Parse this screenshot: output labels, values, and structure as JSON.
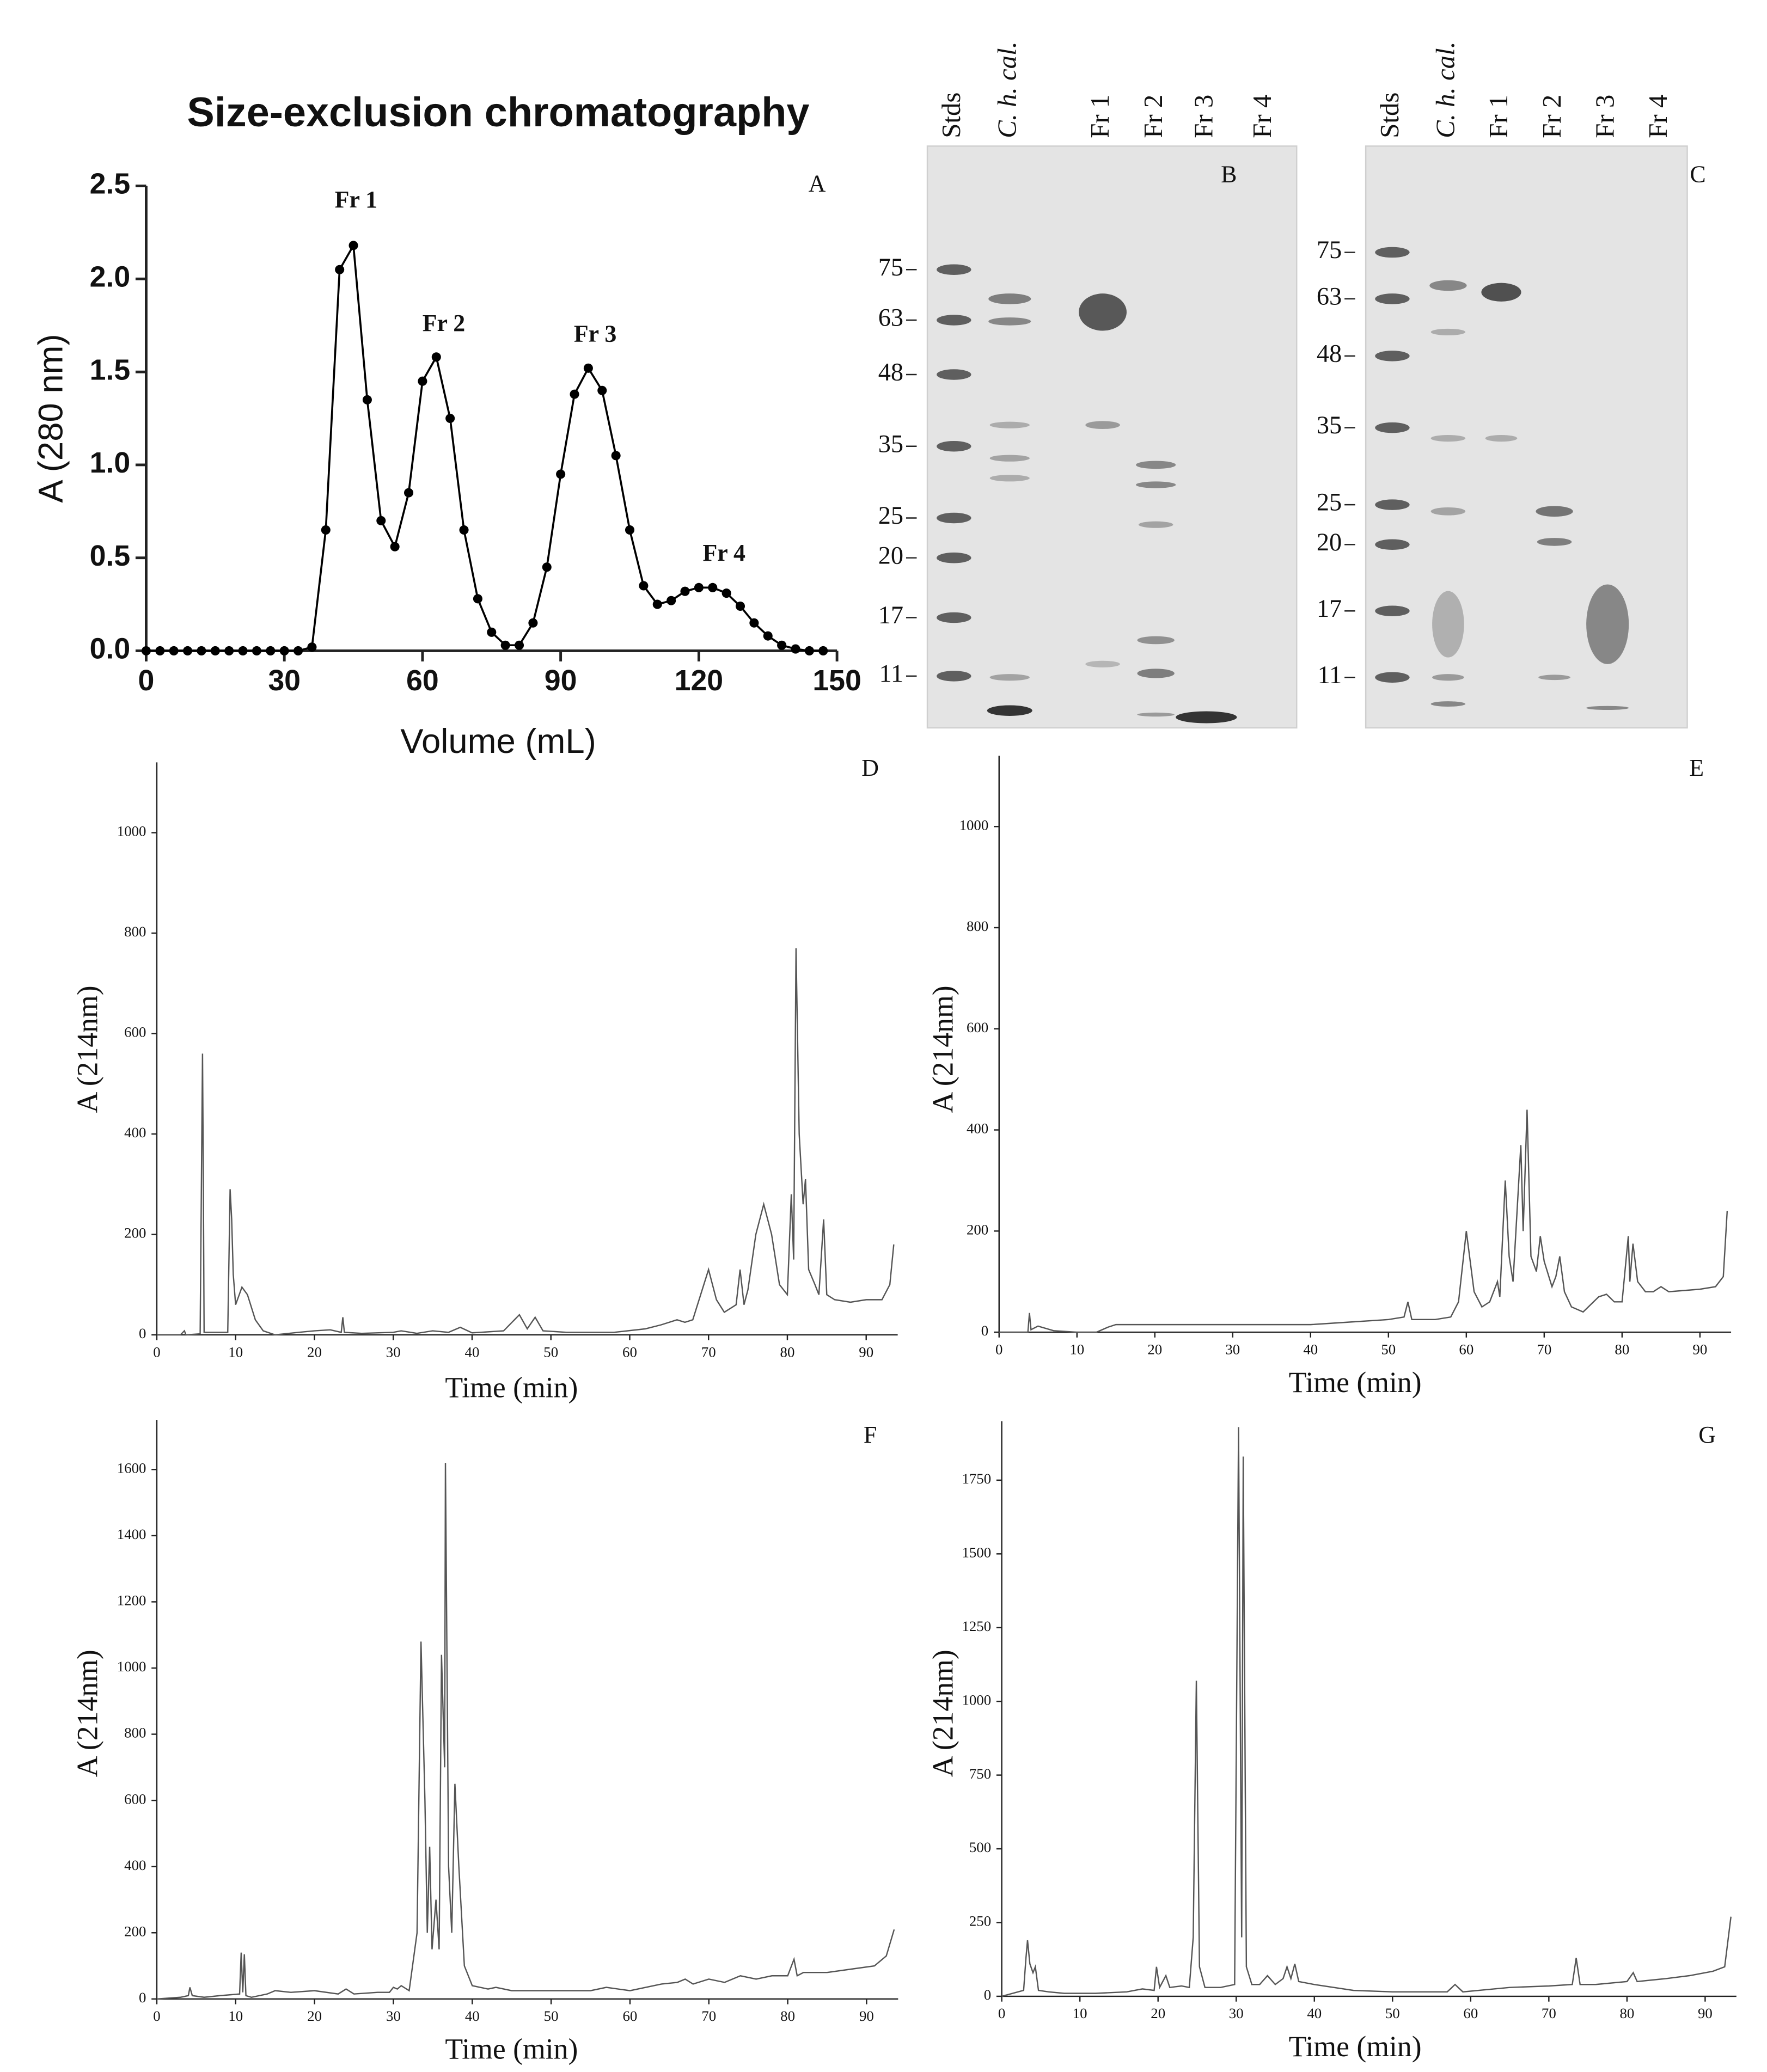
{
  "chart_data": [
    {
      "type": "line",
      "panel": "A",
      "title": "Size-exclusion chromatography",
      "xlabel": "Volume (mL)",
      "ylabel": "A (280 nm)",
      "annotations": [
        "Fr 1",
        "Fr 2",
        "Fr 3",
        "Fr 4"
      ],
      "markers": true,
      "color": "#000000",
      "x": [
        0,
        3,
        6,
        9,
        12,
        15,
        18,
        21,
        24,
        27,
        30,
        33,
        36,
        39,
        42,
        45,
        48,
        51,
        54,
        57,
        60,
        63,
        66,
        69,
        72,
        75,
        78,
        81,
        84,
        87,
        90,
        93,
        96,
        99,
        102,
        105,
        108,
        111,
        114,
        117,
        120,
        123,
        126,
        129,
        132,
        135,
        138,
        141,
        144,
        147
      ],
      "values": [
        0,
        0,
        0,
        0,
        0,
        0,
        0,
        0,
        0,
        0,
        0,
        0,
        0.02,
        0.65,
        2.05,
        2.18,
        1.35,
        0.7,
        0.56,
        0.85,
        1.45,
        1.58,
        1.25,
        0.65,
        0.28,
        0.1,
        0.03,
        0.03,
        0.15,
        0.45,
        0.95,
        1.38,
        1.52,
        1.4,
        1.05,
        0.65,
        0.35,
        0.25,
        0.27,
        0.32,
        0.34,
        0.34,
        0.31,
        0.24,
        0.15,
        0.08,
        0.03,
        0.01,
        0,
        0
      ],
      "xlim": [
        0,
        150
      ],
      "ylim": [
        0,
        2.5
      ],
      "xticks": [
        0,
        30,
        60,
        90,
        120,
        150
      ],
      "yticks": [
        {
          "value": 0,
          "label": "0.0"
        },
        0.5,
        {
          "value": 1,
          "label": "1.0"
        },
        1.5,
        {
          "value": 2,
          "label": "2.0"
        },
        2.5
      ]
    },
    {
      "type": "line",
      "panel": "D",
      "xlabel": "Time (min)",
      "ylabel": "A (214nm)",
      "color": "#555555",
      "x": [
        0,
        3,
        3.5,
        3.7,
        5.5,
        5.8,
        5.9,
        6,
        9,
        9.3,
        9.5,
        9.7,
        10,
        10.8,
        11.5,
        12.5,
        13.5,
        15,
        18,
        20,
        22,
        23.4,
        23.6,
        23.8,
        26,
        30,
        31,
        33,
        35,
        37,
        38.5,
        40,
        44,
        46,
        47,
        48,
        49,
        52,
        58,
        62,
        64,
        66,
        67,
        68,
        69,
        70,
        71,
        72,
        73.5,
        74,
        74.5,
        75,
        76,
        77,
        78,
        79,
        80,
        80.5,
        80.8,
        81.1,
        81.5,
        82,
        82.3,
        82.7,
        83.5,
        84,
        84.6,
        85,
        86,
        88,
        90,
        92,
        93,
        93.5
      ],
      "values": [
        0,
        0,
        8,
        0,
        2,
        560,
        320,
        5,
        5,
        290,
        230,
        120,
        60,
        95,
        80,
        30,
        8,
        0,
        5,
        8,
        10,
        5,
        35,
        5,
        3,
        5,
        8,
        3,
        8,
        5,
        15,
        4,
        8,
        40,
        12,
        35,
        8,
        5,
        5,
        12,
        20,
        30,
        25,
        30,
        80,
        130,
        70,
        45,
        60,
        130,
        60,
        90,
        200,
        260,
        200,
        100,
        80,
        280,
        150,
        770,
        400,
        260,
        310,
        130,
        100,
        80,
        230,
        80,
        70,
        65,
        70,
        70,
        100,
        180
      ],
      "xlim": [
        0,
        94
      ],
      "ylim": [
        0,
        1140
      ],
      "xticks": [
        0,
        10,
        20,
        30,
        40,
        50,
        60,
        70,
        80,
        90
      ],
      "yticks": [
        0,
        200,
        400,
        600,
        800,
        1000
      ]
    },
    {
      "type": "line",
      "panel": "E",
      "xlabel": "Time (min)",
      "ylabel": "A (214nm)",
      "color": "#555555",
      "x": [
        0,
        3,
        3.7,
        3.9,
        4.1,
        5,
        7,
        10,
        12.5,
        14,
        15,
        20,
        30,
        40,
        45,
        50,
        52,
        52.5,
        53,
        56,
        58,
        59,
        60,
        61,
        62,
        63,
        64,
        64.3,
        65,
        65.5,
        66,
        67,
        67.3,
        67.8,
        68.3,
        69,
        69.5,
        70,
        71,
        71.5,
        72,
        72.6,
        73.5,
        75,
        76,
        77,
        78,
        79,
        80,
        80.8,
        81,
        81.4,
        82,
        83,
        84,
        85,
        86,
        90,
        92,
        93,
        93.5
      ],
      "values": [
        0,
        0,
        0,
        38,
        5,
        12,
        3,
        0,
        0,
        10,
        15,
        15,
        15,
        15,
        20,
        25,
        30,
        60,
        25,
        25,
        30,
        60,
        200,
        80,
        50,
        60,
        100,
        70,
        300,
        150,
        100,
        370,
        200,
        440,
        150,
        120,
        190,
        140,
        90,
        110,
        150,
        80,
        50,
        40,
        55,
        70,
        75,
        60,
        60,
        190,
        100,
        175,
        100,
        80,
        80,
        90,
        80,
        85,
        90,
        110,
        240
      ],
      "xlim": [
        0,
        94
      ],
      "ylim": [
        0,
        1140
      ],
      "xticks": [
        0,
        10,
        20,
        30,
        40,
        50,
        60,
        70,
        80,
        90
      ],
      "yticks": [
        0,
        200,
        400,
        600,
        800,
        1000
      ]
    },
    {
      "type": "line",
      "panel": "F",
      "xlabel": "Time (min)",
      "ylabel": "A (214nm)",
      "color": "#555555",
      "x": [
        0,
        3,
        4,
        4.2,
        4.5,
        6,
        8,
        10.5,
        10.7,
        10.9,
        11.1,
        11.3,
        12,
        14,
        15,
        17,
        20,
        23,
        24,
        25,
        28,
        29.5,
        30,
        30.5,
        31,
        32,
        33,
        33.5,
        34,
        34.3,
        34.6,
        34.9,
        35.4,
        35.8,
        36.1,
        36.5,
        36.6,
        37,
        37.4,
        37.8,
        38.3,
        39,
        40,
        42,
        43,
        45,
        50,
        55,
        57,
        60,
        64,
        66,
        67,
        68,
        70,
        72,
        74,
        76,
        78,
        80,
        80.8,
        81.2,
        82,
        85,
        88,
        91,
        92.5,
        93.5
      ],
      "values": [
        0,
        5,
        10,
        35,
        10,
        5,
        10,
        15,
        140,
        20,
        135,
        10,
        5,
        15,
        25,
        20,
        25,
        15,
        30,
        15,
        20,
        20,
        35,
        30,
        40,
        25,
        200,
        1080,
        600,
        200,
        460,
        150,
        300,
        150,
        1040,
        700,
        1620,
        400,
        200,
        650,
        400,
        100,
        40,
        30,
        35,
        25,
        25,
        25,
        35,
        25,
        45,
        50,
        60,
        45,
        60,
        50,
        70,
        60,
        70,
        70,
        120,
        70,
        80,
        80,
        90,
        100,
        130,
        210
      ],
      "xlim": [
        0,
        94
      ],
      "ylim": [
        0,
        1750
      ],
      "xticks": [
        0,
        10,
        20,
        30,
        40,
        50,
        60,
        70,
        80,
        90
      ],
      "yticks": [
        0,
        200,
        400,
        600,
        800,
        1000,
        1200,
        1400,
        1600
      ]
    },
    {
      "type": "line",
      "panel": "G",
      "xlabel": "Time (min)",
      "ylabel": "A (214nm)",
      "color": "#555555",
      "x": [
        0,
        2.8,
        3.1,
        3.3,
        3.6,
        4,
        4.3,
        4.7,
        6,
        8,
        12,
        16,
        18,
        19.5,
        19.8,
        20.2,
        21,
        21.5,
        23,
        24,
        24.5,
        24.9,
        25.3,
        26,
        28,
        29.8,
        30.3,
        30.7,
        30.9,
        31.3,
        32,
        33,
        34,
        35,
        36,
        36.5,
        37,
        37.5,
        38,
        40,
        45,
        50,
        57,
        58,
        59,
        65,
        70,
        73,
        73.5,
        74,
        76,
        80,
        80.8,
        81.3,
        85,
        88,
        91,
        92.5,
        93.3
      ],
      "values": [
        0,
        20,
        130,
        190,
        110,
        80,
        100,
        20,
        15,
        10,
        10,
        15,
        25,
        20,
        100,
        30,
        70,
        30,
        35,
        30,
        200,
        1070,
        100,
        30,
        30,
        40,
        1930,
        200,
        1830,
        100,
        40,
        40,
        70,
        40,
        60,
        100,
        60,
        110,
        50,
        40,
        20,
        15,
        15,
        40,
        15,
        30,
        35,
        40,
        130,
        40,
        40,
        50,
        80,
        50,
        60,
        70,
        85,
        100,
        270
      ],
      "xlim": [
        0,
        94
      ],
      "ylim": [
        0,
        1950
      ],
      "xticks": [
        0,
        10,
        20,
        30,
        40,
        50,
        60,
        70,
        80,
        90
      ],
      "yticks": [
        0,
        250,
        500,
        750,
        1000,
        1250,
        1500,
        1750
      ]
    }
  ],
  "gels": [
    {
      "panel": "B",
      "lanes": [
        "Stds",
        "C. h. cal.",
        "Fr 1",
        "Fr 2",
        "Fr 3",
        "Fr 4"
      ],
      "markers": [
        75,
        63,
        48,
        35,
        25,
        20,
        17,
        11
      ]
    },
    {
      "panel": "C",
      "lanes": [
        "Stds",
        "C. h. cal.",
        "Fr 1",
        "Fr 2",
        "Fr 3",
        "Fr 4"
      ],
      "markers": [
        75,
        63,
        48,
        35,
        25,
        20,
        17,
        11
      ]
    }
  ]
}
